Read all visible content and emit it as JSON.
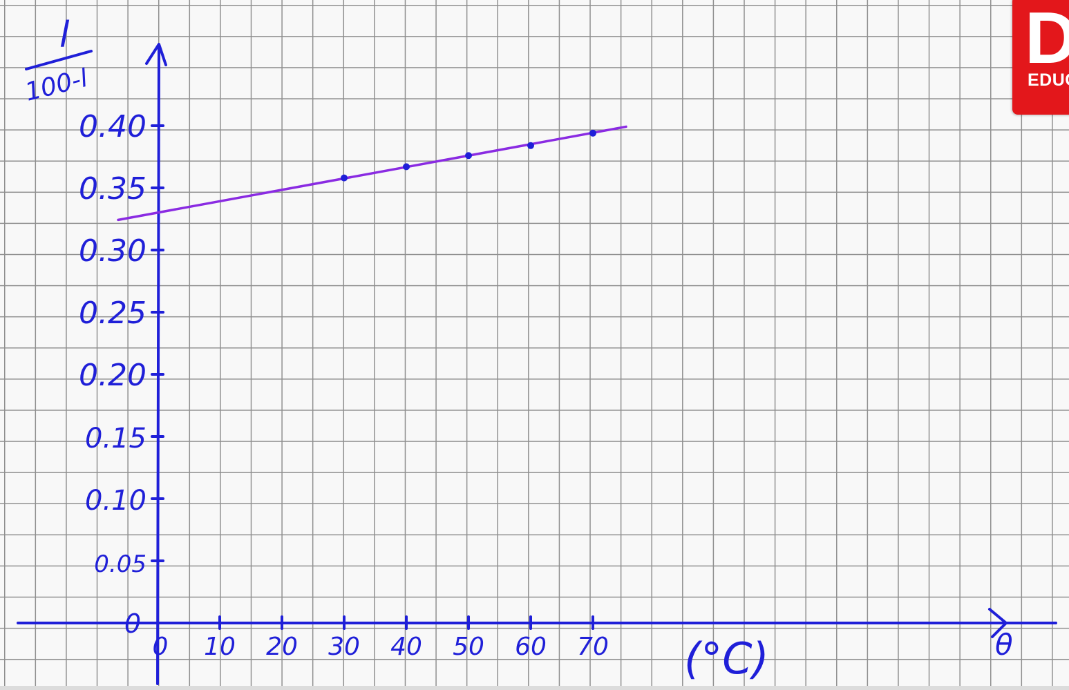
{
  "chart_data": {
    "type": "scatter",
    "title": "",
    "ylabel_numerator": "l",
    "ylabel_denominator": "100-l",
    "xlabel": "θ",
    "x_unit": "(°C)",
    "x_ticks": [
      "0",
      "10",
      "20",
      "30",
      "40",
      "50",
      "60",
      "70"
    ],
    "y_ticks": [
      "0",
      "0.05",
      "0.10",
      "0.15",
      "0.20",
      "0.25",
      "0.30",
      "0.35",
      "0.40"
    ],
    "xlim": [
      0,
      70
    ],
    "ylim": [
      0,
      0.4
    ],
    "grid": true,
    "points": [
      {
        "x": 30,
        "y": 0.358
      },
      {
        "x": 40,
        "y": 0.367
      },
      {
        "x": 50,
        "y": 0.376
      },
      {
        "x": 60,
        "y": 0.384
      },
      {
        "x": 70,
        "y": 0.394
      }
    ],
    "fit_line": {
      "intercept": 0.33,
      "slope": 0.00093,
      "x_from": -5,
      "x_to": 75
    },
    "colors": {
      "axes": "#1f1fd8",
      "points": "#1f1fd8",
      "fit_line": "#8a2be2",
      "grid": "#8f8f8f"
    }
  },
  "logo": {
    "letter": "D",
    "text": "EDUC"
  }
}
